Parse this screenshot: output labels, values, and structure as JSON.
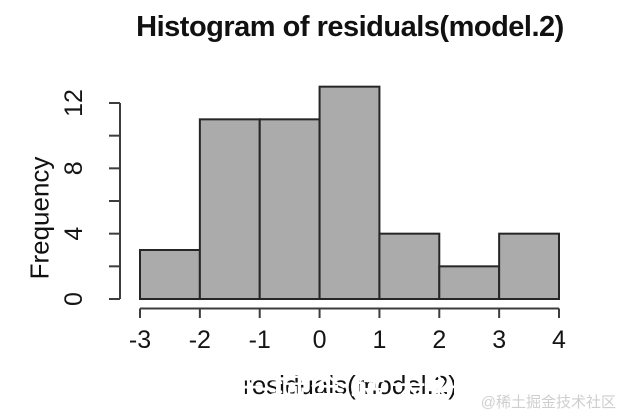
{
  "title": "Histogram of residuals(model.2)",
  "watermark": {
    "corner_text": "@稀土掘金技术社区",
    "overlay_text": "稀土掘金技术社区",
    "corner_color": "#cfcfcf"
  },
  "chart_data": {
    "type": "bar",
    "subtype": "histogram",
    "title": "Histogram of residuals(model.2)",
    "xlabel": "residuals(model.2)",
    "ylabel": "Frequency",
    "bin_edges": [
      -3,
      -2,
      -1,
      0,
      1,
      2,
      3,
      4
    ],
    "counts": [
      3,
      11,
      11,
      13,
      4,
      2,
      4
    ],
    "xlim": [
      -3,
      4
    ],
    "ylim": [
      0,
      13
    ],
    "x_ticks": [
      -3,
      -2,
      -1,
      0,
      1,
      2,
      3,
      4
    ],
    "y_ticks": [
      0,
      2,
      4,
      6,
      8,
      10,
      12
    ],
    "y_labeled_ticks": [
      0,
      4,
      8,
      12
    ],
    "grid": false,
    "legend": false,
    "colors": {
      "bar_fill": "#ababab",
      "bar_stroke": "#262626",
      "axis": "#3d3d3d",
      "tick_text": "#151515",
      "background": "#ffffff"
    }
  }
}
